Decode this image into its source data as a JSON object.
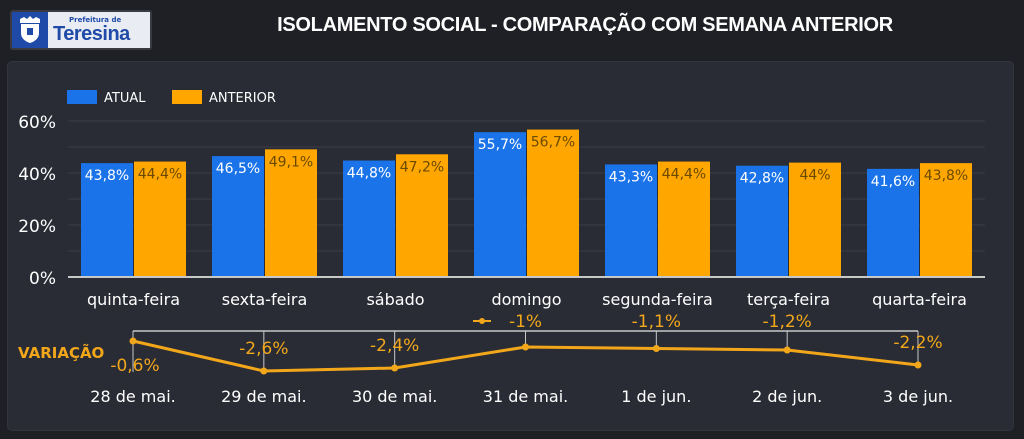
{
  "header": {
    "logo_small": "Prefeitura de",
    "logo_big": "Teresina",
    "title": "ISOLAMENTO SOCIAL - COMPARAÇÃO COM SEMANA ANTERIOR"
  },
  "colors": {
    "atual": "#1a73e8",
    "anterior": "#ffa600",
    "variation": "#f2a71b",
    "text": "#ffffff",
    "grid": "#3a3d47",
    "axis": "#c8c8c8"
  },
  "chart_data": [
    {
      "type": "bar",
      "title": "ISOLAMENTO SOCIAL - COMPARAÇÃO COM SEMANA ANTERIOR",
      "categories": [
        "quinta-feira",
        "sexta-feira",
        "sábado",
        "domingo",
        "segunda-feira",
        "terça-feira",
        "quarta-feira"
      ],
      "series": [
        {
          "name": "ATUAL",
          "values": [
            43.8,
            46.5,
            44.8,
            55.7,
            43.3,
            42.8,
            41.6
          ],
          "labels": [
            "43,8%",
            "46,5%",
            "44,8%",
            "55,7%",
            "43,3%",
            "42,8%",
            "41,6%"
          ]
        },
        {
          "name": "ANTERIOR",
          "values": [
            44.4,
            49.1,
            47.2,
            56.7,
            44.4,
            44.0,
            43.8
          ],
          "labels": [
            "44,4%",
            "49,1%",
            "47,2%",
            "56,7%",
            "44,4%",
            "44%",
            "43,8%"
          ]
        }
      ],
      "yticks": [
        "0%",
        "20%",
        "40%",
        "60%"
      ],
      "ylim": [
        0,
        60
      ],
      "grid": true,
      "legend": "top-left",
      "xlabel": "",
      "ylabel": ""
    },
    {
      "type": "line",
      "series_name": "VARIAÇÃO",
      "x": [
        "28 de mai.",
        "29 de mai.",
        "30 de mai.",
        "31 de mai.",
        "1 de jun.",
        "2 de jun.",
        "3 de jun."
      ],
      "values": [
        -0.6,
        -2.6,
        -2.4,
        -1.0,
        -1.1,
        -1.2,
        -2.2
      ],
      "labels": [
        "-0,6%",
        "-2,6%",
        "-2,4%",
        "-1%",
        "-1,1%",
        "-1,2%",
        "-2,2%"
      ],
      "ylim": [
        -3,
        0
      ]
    }
  ]
}
